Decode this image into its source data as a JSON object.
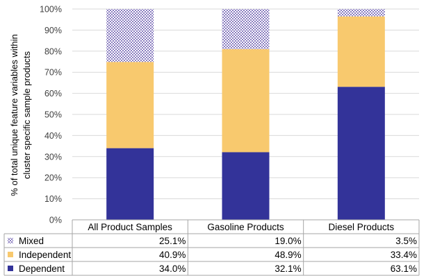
{
  "chart_data": {
    "type": "bar",
    "stacked": true,
    "categories": [
      "All Product Samples",
      "Gasoline Products",
      "Diesel Products"
    ],
    "series": [
      {
        "name": "Dependent",
        "values": [
          34.0,
          32.1,
          63.1
        ],
        "labels": [
          "34.0%",
          "32.1%",
          "63.1%"
        ],
        "color": "#333399"
      },
      {
        "name": "Independent",
        "values": [
          40.9,
          48.9,
          33.4
        ],
        "labels": [
          "40.9%",
          "48.9%",
          "33.4%"
        ],
        "color": "#f8c96e"
      },
      {
        "name": "Mixed",
        "values": [
          25.1,
          19.0,
          3.5
        ],
        "labels": [
          "25.1%",
          "19.0%",
          "3.5%"
        ],
        "color": "#8a7dc0",
        "pattern": "checkered"
      }
    ],
    "ylabel": "% of total unique feature variables within cluster specific sample products",
    "ylabel_lines": [
      "% of total unique feature variables within",
      "cluster specific sample products"
    ],
    "yticks": [
      "0%",
      "10%",
      "20%",
      "30%",
      "40%",
      "50%",
      "60%",
      "70%",
      "80%",
      "90%",
      "100%"
    ],
    "ylim": [
      0,
      100
    ],
    "grid": true,
    "legend": "data-table",
    "table_row_order": [
      "Mixed",
      "Independent",
      "Dependent"
    ]
  }
}
